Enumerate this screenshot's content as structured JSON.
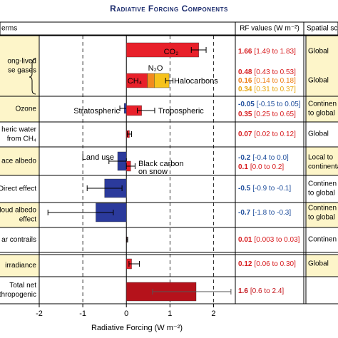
{
  "chart_data": {
    "type": "forcing",
    "title": "Radiative Forcing Components",
    "headers": {
      "terms": "erms",
      "values": "RF values (W m⁻²)",
      "scale": "Spatial sc"
    },
    "xlabel": "Radiative Forcing (W m⁻²)",
    "xlim": [
      -2,
      2.5
    ],
    "xticks": [
      -2,
      -1,
      0,
      1,
      2
    ],
    "grid": true,
    "sections": [
      {
        "term": [
          "ong-lived",
          "se gases"
        ],
        "scale": [
          "Global",
          "Global"
        ],
        "groups": [
          {
            "low": 1.49,
            "high": 1.83,
            "components": [
              {
                "label": [
                  "CO₂"
                ],
                "value": 1.66,
                "range_label": "[1.49 to 1.83]",
                "color": "#e8202a",
                "text_color": "#d7191c"
              }
            ]
          },
          {
            "low": 0.9,
            "high": 1.07,
            "components": [
              {
                "label": [
                  "CH₄"
                ],
                "value": 0.48,
                "range_label": "[0.43 to 0.53]",
                "color": "#e8202a",
                "text_color": "#d7191c"
              },
              {
                "label": [
                  "N₂O"
                ],
                "value": 0.16,
                "range_label": "[0.14 to 0.18]",
                "color": "#f28a1e",
                "text_color": "#ee7d14"
              },
              {
                "label": [
                  "Halocarbons"
                ],
                "value": 0.34,
                "range_label": "[0.31 to 0.37]",
                "color": "#f6c21c",
                "text_color": "#e8a60e"
              }
            ]
          }
        ]
      },
      {
        "term": [
          "Ozone"
        ],
        "scale": [
          "Continen",
          "to global"
        ],
        "groups": [
          {
            "low": -0.15,
            "high": 0.05,
            "components": [
              {
                "label": [
                  "Stratospheric"
                ],
                "value": -0.05,
                "range_label": "[-0.15 to 0.05]",
                "color": "#2b3a9c",
                "text_color": "#1f4e9c"
              }
            ]
          },
          {
            "low": 0.25,
            "high": 0.65,
            "components": [
              {
                "label": [
                  "Tropospheric"
                ],
                "value": 0.35,
                "range_label": "[0.25 to 0.65]",
                "color": "#e8202a",
                "text_color": "#d7191c"
              }
            ]
          }
        ]
      },
      {
        "term": [
          "heric water",
          "from CH₄"
        ],
        "scale": [
          "Global"
        ],
        "groups": [
          {
            "low": 0.02,
            "high": 0.12,
            "components": [
              {
                "value": 0.07,
                "range_label": "[0.02 to 0.12]",
                "color": "#e8202a",
                "text_color": "#d7191c"
              }
            ]
          }
        ]
      },
      {
        "term": [
          "ace albedo"
        ],
        "scale": [
          "Local to",
          "continental"
        ],
        "groups": [
          {
            "low": -0.4,
            "high": 0.0,
            "components": [
              {
                "label": [
                  "Land use"
                ],
                "value": -0.2,
                "range_label": "[-0.4 to 0.0]",
                "color": "#2b3a9c",
                "text_color": "#1f4e9c"
              }
            ]
          },
          {
            "low": 0.0,
            "high": 0.2,
            "components": [
              {
                "label": [
                  "Black carbon",
                  "on snow"
                ],
                "value": 0.1,
                "range_label": "[0.0 to 0.2]",
                "color": "#e8202a",
                "text_color": "#d7191c"
              }
            ]
          }
        ]
      },
      {
        "term": [
          "Direct effect"
        ],
        "scale": [
          "Continen",
          "to global"
        ],
        "groups": [
          {
            "low": -0.9,
            "high": -0.1,
            "components": [
              {
                "value": -0.5,
                "range_label": "[-0.9 to -0.1]",
                "color": "#2b3a9c",
                "text_color": "#1f4e9c"
              }
            ]
          }
        ]
      },
      {
        "term": [
          "loud albedo",
          "effect"
        ],
        "scale": [
          "Continen",
          "to global"
        ],
        "groups": [
          {
            "low": -1.8,
            "high": -0.3,
            "components": [
              {
                "value": -0.7,
                "range_label": "[-1.8 to -0.3]",
                "color": "#2b3a9c",
                "text_color": "#1f4e9c"
              }
            ]
          }
        ]
      },
      {
        "term": [
          "ar contrails"
        ],
        "scale": [
          "Continen"
        ],
        "groups": [
          {
            "low": 0.003,
            "high": 0.03,
            "components": [
              {
                "value": 0.01,
                "range_label": "[0.003 to 0.03]",
                "color": "#e8202a",
                "text_color": "#d7191c"
              }
            ]
          }
        ]
      },
      {
        "term": [
          "irradiance"
        ],
        "scale": [
          "Global"
        ],
        "groups": [
          {
            "low": 0.06,
            "high": 0.3,
            "components": [
              {
                "value": 0.12,
                "range_label": "[0.06 to 0.30]",
                "color": "#e8202a",
                "text_color": "#d7191c"
              }
            ]
          }
        ]
      },
      {
        "term": [
          "Total net",
          "anthropogenic"
        ],
        "scale": [],
        "groups": [
          {
            "low": 0.6,
            "high": 2.4,
            "components": [
              {
                "value": 1.6,
                "range_label": "[0.6 to 2.4]",
                "color": "#b5121b",
                "text_color": "#c4151c"
              }
            ]
          }
        ]
      }
    ]
  }
}
